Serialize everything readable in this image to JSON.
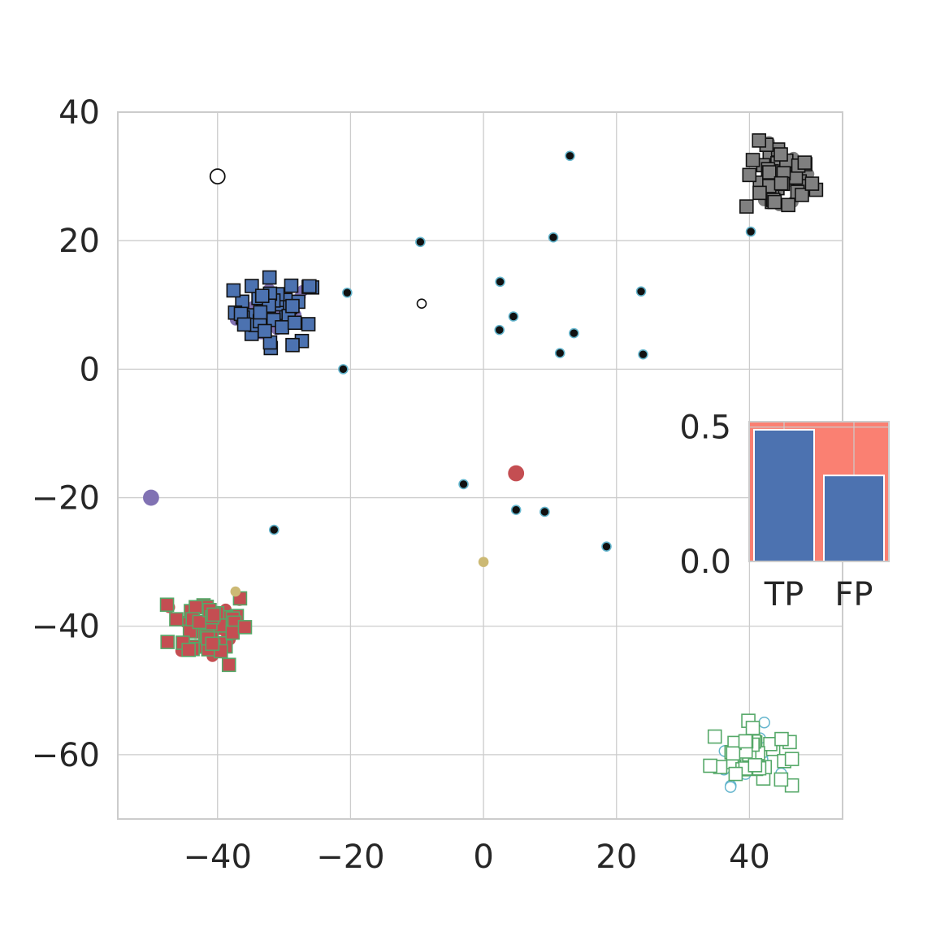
{
  "chart_data": [
    {
      "type": "scatter",
      "title": "",
      "xlabel": "",
      "ylabel": "",
      "xlim": [
        -55,
        54
      ],
      "ylim": [
        -70,
        40
      ],
      "xticks": [
        -40,
        -20,
        0,
        20,
        40
      ],
      "yticks": [
        40,
        20,
        0,
        -20,
        -40,
        -60
      ],
      "xtick_labels": [
        "−40",
        "−20",
        "0",
        "20",
        "40"
      ],
      "ytick_labels": [
        "40",
        "20",
        "0",
        "−20",
        "−40",
        "−60"
      ],
      "grid": true,
      "clusters": [
        {
          "id": "blue-squares",
          "marker": "square",
          "fill": "#4c72b0",
          "edge": "#111111",
          "under_fill": "#8172b3",
          "center": [
            -31,
            9
          ],
          "spread": [
            3.2,
            2.6
          ],
          "count": 42
        },
        {
          "id": "gray-squares",
          "marker": "square",
          "fill": "#808080",
          "edge": "#111111",
          "under_fill": "#808080",
          "center": [
            44.5,
            29.5
          ],
          "spread": [
            2.6,
            2.8
          ],
          "count": 40
        },
        {
          "id": "red-squares",
          "marker": "square",
          "fill": "#c44e52",
          "edge": "#55a868",
          "under_fill": "#c44e52",
          "center": [
            -41,
            -40
          ],
          "spread": [
            3.0,
            2.9
          ],
          "count": 45
        },
        {
          "id": "white-squares",
          "marker": "square",
          "fill": "#ffffff",
          "edge": "#55a868",
          "under_fill": "#ffffff",
          "under_edge": "#64b5cd",
          "center": [
            40,
            -60
          ],
          "spread": [
            2.9,
            2.4
          ],
          "count": 42
        }
      ],
      "points": [
        {
          "x": 13,
          "y": 33.2,
          "fill": "#111111",
          "edge": "#64b5cd",
          "size": "small"
        },
        {
          "x": -9.5,
          "y": 19.8,
          "fill": "#111111",
          "edge": "#64b5cd",
          "size": "small"
        },
        {
          "x": 10.5,
          "y": 20.5,
          "fill": "#111111",
          "edge": "#64b5cd",
          "size": "small"
        },
        {
          "x": 40.2,
          "y": 21.4,
          "fill": "#111111",
          "edge": "#64b5cd",
          "size": "small"
        },
        {
          "x": -20.5,
          "y": 11.9,
          "fill": "#111111",
          "edge": "#64b5cd",
          "size": "small"
        },
        {
          "x": 2.5,
          "y": 13.6,
          "fill": "#111111",
          "edge": "#64b5cd",
          "size": "small"
        },
        {
          "x": 23.7,
          "y": 12.1,
          "fill": "#111111",
          "edge": "#64b5cd",
          "size": "small"
        },
        {
          "x": 4.5,
          "y": 8.2,
          "fill": "#111111",
          "edge": "#64b5cd",
          "size": "small"
        },
        {
          "x": 2.4,
          "y": 6.1,
          "fill": "#111111",
          "edge": "#64b5cd",
          "size": "small"
        },
        {
          "x": 13.6,
          "y": 5.6,
          "fill": "#111111",
          "edge": "#64b5cd",
          "size": "small"
        },
        {
          "x": 11.5,
          "y": 2.5,
          "fill": "#111111",
          "edge": "#64b5cd",
          "size": "small"
        },
        {
          "x": 24,
          "y": 2.3,
          "fill": "#111111",
          "edge": "#64b5cd",
          "size": "small"
        },
        {
          "x": -21.1,
          "y": 0,
          "fill": "#111111",
          "edge": "#64b5cd",
          "size": "small"
        },
        {
          "x": -3,
          "y": -17.9,
          "fill": "#111111",
          "edge": "#64b5cd",
          "size": "small"
        },
        {
          "x": 4.9,
          "y": -21.9,
          "fill": "#111111",
          "edge": "#64b5cd",
          "size": "small"
        },
        {
          "x": 9.2,
          "y": -22.2,
          "fill": "#111111",
          "edge": "#64b5cd",
          "size": "small"
        },
        {
          "x": -31.5,
          "y": -25,
          "fill": "#111111",
          "edge": "#64b5cd",
          "size": "small"
        },
        {
          "x": 18.5,
          "y": -27.6,
          "fill": "#111111",
          "edge": "#64b5cd",
          "size": "small"
        },
        {
          "x": -9.3,
          "y": 10.2,
          "fill": "#ffffff",
          "edge": "#111111",
          "size": "small"
        },
        {
          "x": -40,
          "y": 30,
          "fill": "#ffffff",
          "edge": "#111111",
          "size": "medium"
        },
        {
          "x": -50,
          "y": -20,
          "fill": "#8172b3",
          "edge": "#8172b3",
          "size": "medium"
        },
        {
          "x": 4.9,
          "y": -16.2,
          "fill": "#c44e52",
          "edge": "#c44e52",
          "size": "medium"
        },
        {
          "x": 0,
          "y": -30,
          "fill": "#ccb974",
          "edge": "#ccb974",
          "size": "small"
        },
        {
          "x": -37.3,
          "y": -34.6,
          "fill": "#ccb974",
          "edge": "#ccb974",
          "size": "small"
        }
      ]
    },
    {
      "type": "bar",
      "title": "",
      "xlabel": "",
      "ylabel": "",
      "categories": [
        "TP",
        "FP"
      ],
      "values": [
        0.49,
        0.32
      ],
      "background_value": 0.52,
      "ylim": [
        0,
        0.52
      ],
      "yticks": [
        0.5,
        0.0
      ],
      "ytick_labels": [
        "0.5",
        "0.0"
      ],
      "colors": {
        "bar": "#4c72b0",
        "background": "#fa8072"
      },
      "grid": true
    }
  ]
}
